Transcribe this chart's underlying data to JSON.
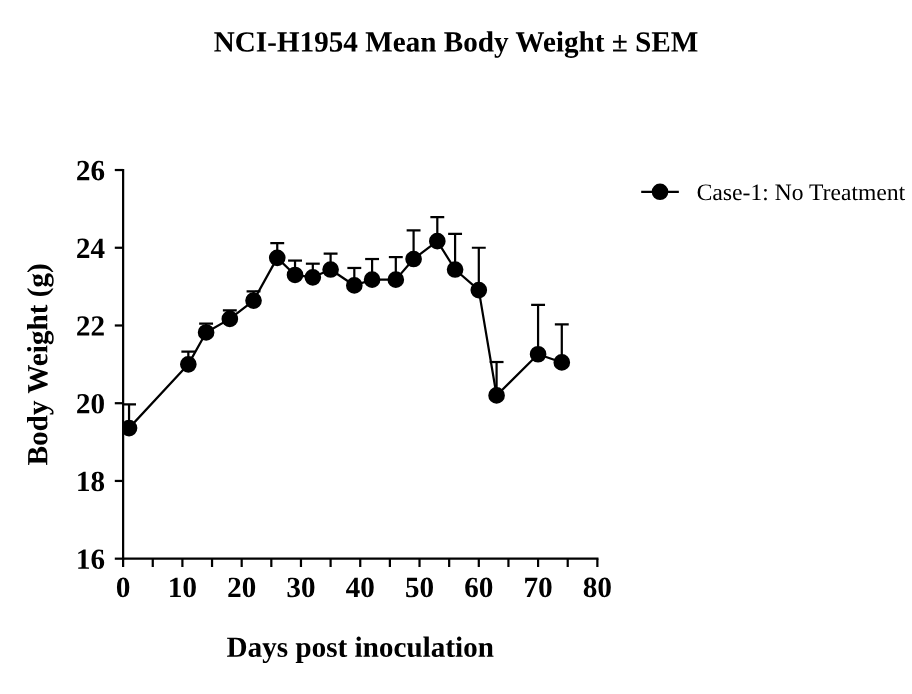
{
  "chart_data": {
    "type": "line",
    "title": "NCI-H1954 Mean Body Weight ± SEM",
    "xlabel": "Days post inoculation",
    "ylabel": "Body Weight (g)",
    "x": [
      1,
      11,
      14,
      18,
      22,
      26,
      29,
      32,
      35,
      39,
      42,
      46,
      49,
      53,
      56,
      60,
      63,
      70,
      74
    ],
    "series": [
      {
        "name": "Case-1: No Treatment",
        "color": "#000000",
        "values": [
          19.36,
          21.0,
          21.82,
          22.17,
          22.64,
          23.74,
          23.3,
          23.24,
          23.44,
          23.03,
          23.18,
          23.18,
          23.71,
          24.17,
          23.44,
          22.91,
          20.2,
          21.26,
          21.05
        ],
        "errors": [
          [
            19.36,
            19.97
          ],
          [
            21.0,
            21.33
          ],
          [
            21.82,
            22.05
          ],
          [
            22.17,
            22.39
          ],
          [
            22.64,
            22.88
          ],
          [
            23.74,
            24.12
          ],
          [
            23.3,
            23.67
          ],
          [
            23.24,
            23.59
          ],
          [
            23.44,
            23.85
          ],
          [
            23.03,
            23.48
          ],
          [
            23.18,
            23.71
          ],
          [
            23.18,
            23.76
          ],
          [
            23.71,
            24.45
          ],
          [
            24.17,
            24.79
          ],
          [
            23.44,
            24.36
          ],
          [
            22.91,
            24.0
          ],
          [
            20.2,
            21.06
          ],
          [
            21.26,
            22.53
          ],
          [
            21.05,
            22.03
          ]
        ]
      }
    ],
    "xlim": [
      0,
      80
    ],
    "xticks": [
      0,
      {
        "value": 5,
        "label": null
      },
      10,
      {
        "value": 15,
        "label": null
      },
      20,
      {
        "value": 25,
        "label": null
      },
      30,
      {
        "value": 35,
        "label": null
      },
      40,
      {
        "value": 45,
        "label": null
      },
      50,
      {
        "value": 55,
        "label": null
      },
      60,
      {
        "value": 65,
        "label": null
      },
      70,
      {
        "value": 75,
        "label": null
      },
      80
    ],
    "ylim": [
      16,
      26
    ],
    "yticks": [
      16,
      18,
      20,
      22,
      24,
      26
    ],
    "marker": "circle",
    "line_style": "solid",
    "legend": "top right",
    "grid": false
  }
}
